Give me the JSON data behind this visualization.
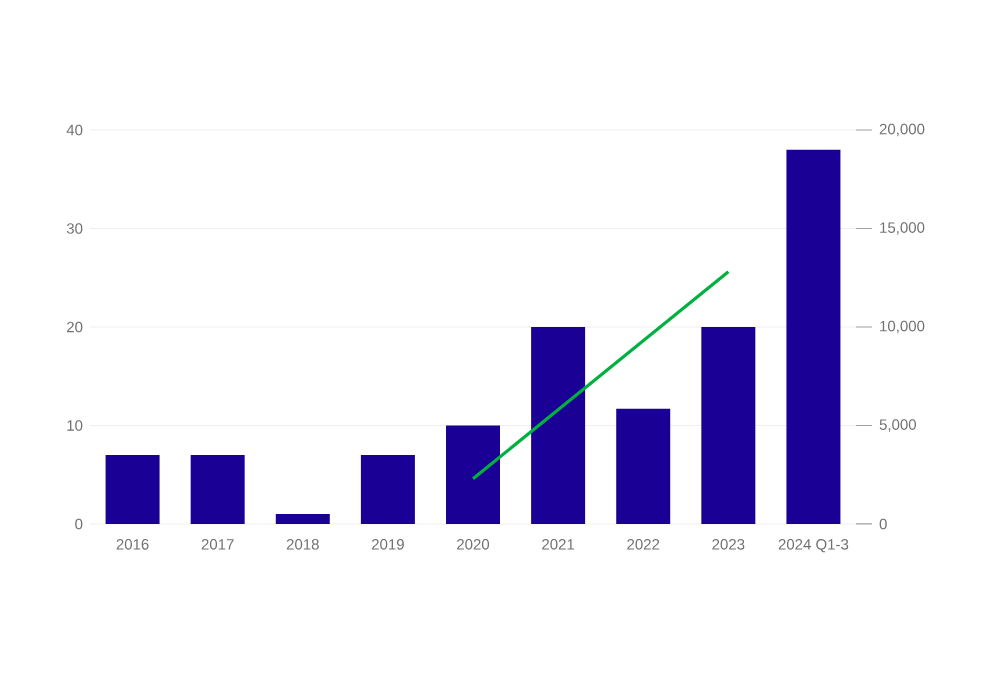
{
  "chart_data": {
    "type": "bar",
    "categories": [
      "2016",
      "2017",
      "2018",
      "2019",
      "2020",
      "2021",
      "2022",
      "2023",
      "2024 Q1-3"
    ],
    "series": [
      {
        "color": "#1b0096",
        "values": [
          7,
          7,
          1,
          7,
          10,
          20,
          11.7,
          20,
          38
        ]
      },
      {
        "type": "line",
        "axis": "y2",
        "color": "#00b140",
        "values": [
          null,
          null,
          null,
          null,
          2300,
          5800,
          9300,
          12800,
          null
        ]
      }
    ],
    "ylim": [
      0,
      40
    ],
    "yticks": [
      0,
      10,
      20,
      30,
      40
    ],
    "y2lim": [
      0,
      20000
    ],
    "y2ticks": [
      {
        "value": 0,
        "label": "0"
      },
      {
        "value": 5000,
        "label": "5,000"
      },
      {
        "value": 10000,
        "label": "10,000"
      },
      {
        "value": 15000,
        "label": "15,000"
      },
      {
        "value": 20000,
        "label": "20,000"
      }
    ],
    "grid": "y"
  }
}
